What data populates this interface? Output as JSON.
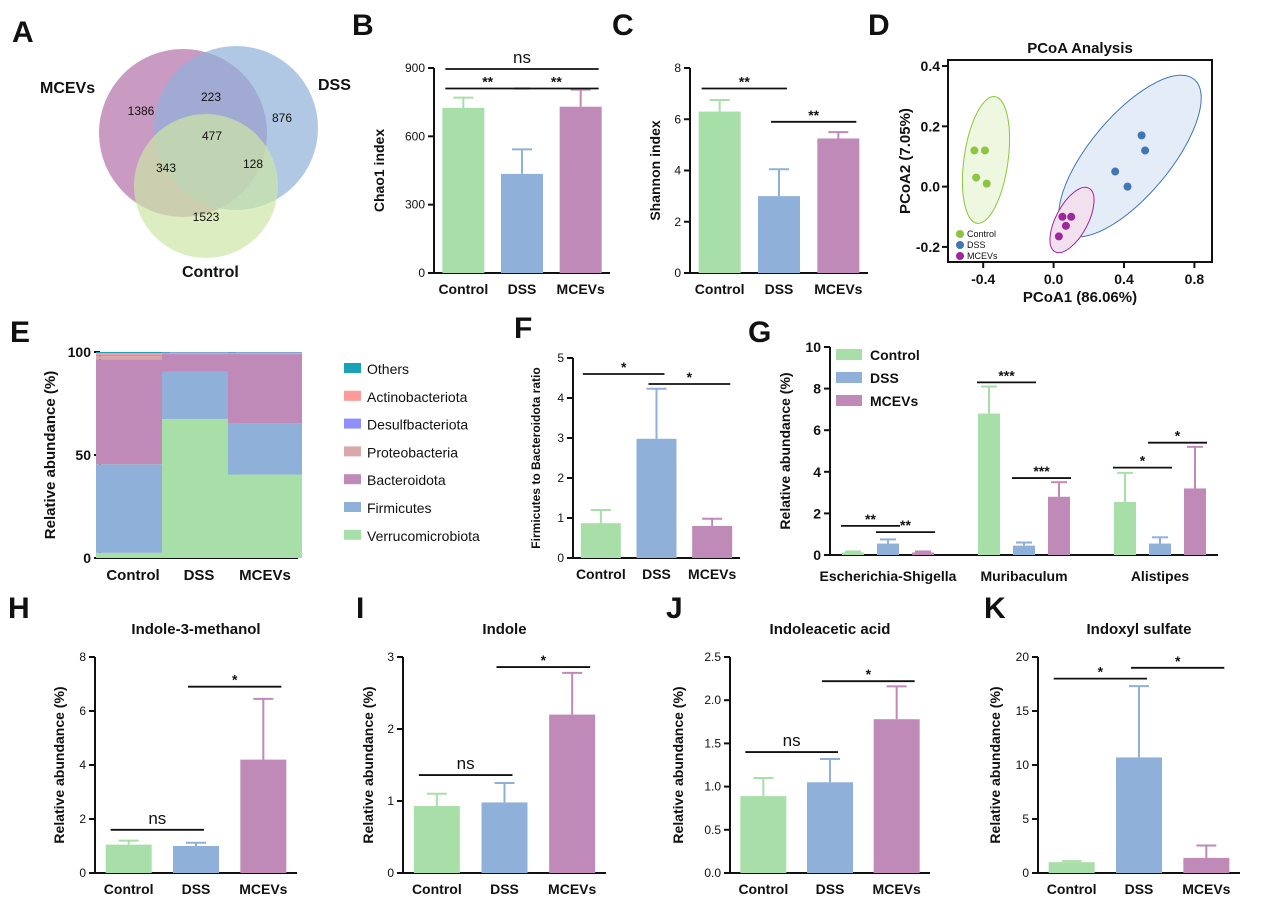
{
  "colors": {
    "control": "#a8dfa8",
    "dss": "#8fb0d8",
    "mcevs": "#c08ab8",
    "control_dot": "#8cc63f",
    "dss_dot": "#3f76b6",
    "mcevs_dot": "#a0279a",
    "others": "#1aa3b8",
    "actino": "#ff9a9a",
    "desulf": "#8f8fff",
    "proteo": "#d9a8a8"
  },
  "panels": {
    "A": "A",
    "B": "B",
    "C": "C",
    "D": "D",
    "E": "E",
    "F": "F",
    "G": "G",
    "H": "H",
    "I": "I",
    "J": "J",
    "K": "K"
  },
  "venn": {
    "labels": {
      "mcevs": "MCEVs",
      "dss": "DSS",
      "control": "Control"
    },
    "counts": {
      "mcevs_only": "1386",
      "mcevs_dss": "223",
      "dss_only": "876",
      "all": "477",
      "mcevs_control": "343",
      "dss_control": "128",
      "control_only": "1523"
    }
  },
  "chart_data": [
    {
      "id": "B",
      "type": "bar",
      "categories": [
        "Control",
        "DSS",
        "MCEVs"
      ],
      "values": [
        725,
        435,
        730
      ],
      "errors": [
        45,
        108,
        75
      ],
      "ylabel": "Chao1 index",
      "ylim": [
        0,
        900
      ],
      "yticks": [
        "0",
        "300",
        "600",
        "900"
      ],
      "significance": [
        {
          "from": 0,
          "to": 1,
          "label": "**",
          "level": 0
        },
        {
          "from": 1,
          "to": 2,
          "label": "**",
          "level": 0
        },
        {
          "from": 0,
          "to": 2,
          "label": "ns",
          "level": 1
        }
      ]
    },
    {
      "id": "C",
      "type": "bar",
      "categories": [
        "Control",
        "DSS",
        "MCEVs"
      ],
      "values": [
        6.3,
        3.0,
        5.25
      ],
      "errors": [
        0.45,
        1.05,
        0.25
      ],
      "ylabel": "Shannon index",
      "ylim": [
        0,
        8
      ],
      "yticks": [
        "0",
        "2",
        "4",
        "6",
        "8"
      ],
      "significance": [
        {
          "from": 0,
          "to": 1,
          "label": "**",
          "y": 7.2
        },
        {
          "from": 1,
          "to": 2,
          "label": "**",
          "y": 5.9
        }
      ]
    },
    {
      "id": "D",
      "type": "scatter",
      "title": "PCoA Analysis",
      "xlabel": "PCoA1 (86.06%)",
      "ylabel": "PCoA2 (7.05%)",
      "xlim": [
        -0.6,
        0.9
      ],
      "ylim": [
        -0.25,
        0.42
      ],
      "xticks": [
        "-0.4",
        "0.0",
        "0.4",
        "0.8"
      ],
      "yticks": [
        "-0.2",
        "0.0",
        "0.2",
        "0.4"
      ],
      "legend": [
        "Control",
        "DSS",
        "MCEVs"
      ],
      "series": [
        {
          "name": "Control",
          "points": [
            [
              -0.45,
              0.12
            ],
            [
              -0.39,
              0.12
            ],
            [
              -0.44,
              0.03
            ],
            [
              -0.38,
              0.01
            ]
          ]
        },
        {
          "name": "DSS",
          "points": [
            [
              0.5,
              0.17
            ],
            [
              0.52,
              0.12
            ],
            [
              0.35,
              0.05
            ],
            [
              0.42,
              0.0
            ]
          ]
        },
        {
          "name": "MCEVs",
          "points": [
            [
              0.05,
              -0.1
            ],
            [
              0.1,
              -0.1
            ],
            [
              0.07,
              -0.13
            ],
            [
              0.03,
              -0.165
            ]
          ]
        }
      ]
    },
    {
      "id": "E",
      "type": "bar",
      "stacked": true,
      "categories": [
        "Control",
        "DSS",
        "MCEVs"
      ],
      "ylabel": "Relative abundance (%)",
      "ylim": [
        0,
        100
      ],
      "yticks": [
        "0",
        "50",
        "100"
      ],
      "series": [
        {
          "name": "Verrucomicrobiota",
          "values": [
            2.5,
            67.5,
            40.5
          ]
        },
        {
          "name": "Firmicutes",
          "values": [
            43,
            23,
            25
          ]
        },
        {
          "name": "Bacteroidota",
          "values": [
            51,
            8.5,
            33.5
          ]
        },
        {
          "name": "Proteobacteria",
          "values": [
            1.5,
            0.5,
            0.5
          ]
        },
        {
          "name": "Desulfbacteriota",
          "values": [
            0.5,
            0.2,
            0.2
          ]
        },
        {
          "name": "Actinobacteriota",
          "values": [
            1.0,
            0.1,
            0.1
          ]
        },
        {
          "name": "Others",
          "values": [
            0.5,
            0.2,
            0.2
          ]
        }
      ],
      "legend": [
        "Others",
        "Actinobacteriota",
        "Desulfbacteriota",
        "Proteobacteria",
        "Bacteroidota",
        "Firmicutes",
        "Verrucomicrobiota"
      ]
    },
    {
      "id": "F",
      "type": "bar",
      "categories": [
        "Control",
        "DSS",
        "MCEVs"
      ],
      "values": [
        0.87,
        2.98,
        0.8
      ],
      "errors": [
        0.33,
        1.25,
        0.18
      ],
      "ylabel": "Firmicutes to Bacteroidota ratio",
      "ylim": [
        0,
        5
      ],
      "yticks": [
        "0",
        "1",
        "2",
        "3",
        "4",
        "5"
      ],
      "significance": [
        {
          "from": 0,
          "to": 1,
          "label": "*",
          "y": 4.6
        },
        {
          "from": 1,
          "to": 2,
          "label": "*",
          "y": 4.35
        }
      ]
    },
    {
      "id": "G",
      "type": "bar",
      "categories": [
        "Escherichia-Shigella",
        "Muribaculum",
        "Alistipes"
      ],
      "series": [
        {
          "name": "Control",
          "values": [
            0.12,
            6.8,
            2.55
          ],
          "errors": [
            0.05,
            1.3,
            1.4
          ]
        },
        {
          "name": "DSS",
          "values": [
            0.55,
            0.45,
            0.55
          ],
          "errors": [
            0.2,
            0.15,
            0.3
          ]
        },
        {
          "name": "MCEVs",
          "values": [
            0.12,
            2.8,
            3.2
          ],
          "errors": [
            0.05,
            0.7,
            2.0
          ]
        }
      ],
      "ylabel": "Relative abundance (%)",
      "ylim": [
        0,
        10
      ],
      "yticks": [
        "0",
        "2",
        "4",
        "6",
        "8",
        "10"
      ],
      "legend": [
        "Control",
        "DSS",
        "MCEVs"
      ],
      "significance": [
        {
          "group": 0,
          "from": 0,
          "to": 1,
          "label": "**",
          "y": 1.4
        },
        {
          "group": 0,
          "from": 1,
          "to": 2,
          "label": "**",
          "y": 1.1
        },
        {
          "group": 1,
          "from": 0,
          "to": 1,
          "label": "***",
          "y": 8.3
        },
        {
          "group": 1,
          "from": 1,
          "to": 2,
          "label": "***",
          "y": 3.7
        },
        {
          "group": 2,
          "from": 0,
          "to": 1,
          "label": "*",
          "y": 4.2
        },
        {
          "group": 2,
          "from": 1,
          "to": 2,
          "label": "*",
          "y": 5.4
        }
      ]
    },
    {
      "id": "H",
      "type": "bar",
      "title": "Indole-3-methanol",
      "categories": [
        "Control",
        "DSS",
        "MCEVs"
      ],
      "values": [
        1.05,
        1.0,
        4.2
      ],
      "errors": [
        0.15,
        0.12,
        2.25
      ],
      "ylabel": "Relative abundance (%)",
      "ylim": [
        0,
        8
      ],
      "yticks": [
        "0",
        "2",
        "4",
        "6",
        "8"
      ],
      "significance": [
        {
          "from": 0,
          "to": 1,
          "label": "ns",
          "y": 1.6
        },
        {
          "from": 1,
          "to": 2,
          "label": "*",
          "y": 6.9
        }
      ]
    },
    {
      "id": "I",
      "type": "bar",
      "title": "Indole",
      "categories": [
        "Control",
        "DSS",
        "MCEVs"
      ],
      "values": [
        0.93,
        0.98,
        2.2
      ],
      "errors": [
        0.17,
        0.27,
        0.58
      ],
      "ylabel": "Relative abundance (%)",
      "ylim": [
        0,
        3
      ],
      "yticks": [
        "0",
        "1",
        "2",
        "3"
      ],
      "significance": [
        {
          "from": 0,
          "to": 1,
          "label": "ns",
          "y": 1.36
        },
        {
          "from": 1,
          "to": 2,
          "label": "*",
          "y": 2.86
        }
      ]
    },
    {
      "id": "J",
      "type": "bar",
      "title": "Indoleacetic acid",
      "categories": [
        "Control",
        "DSS",
        "MCEVs"
      ],
      "values": [
        0.89,
        1.05,
        1.78
      ],
      "errors": [
        0.21,
        0.27,
        0.38
      ],
      "ylabel": "Relative abundance (%)",
      "ylim": [
        0,
        2.5
      ],
      "yticks": [
        "0.0",
        "0.5",
        "1.0",
        "1.5",
        "2.0",
        "2.5"
      ],
      "significance": [
        {
          "from": 0,
          "to": 1,
          "label": "ns",
          "y": 1.4
        },
        {
          "from": 1,
          "to": 2,
          "label": "*",
          "y": 2.22
        }
      ]
    },
    {
      "id": "K",
      "type": "bar",
      "title": "Indoxyl sulfate",
      "categories": [
        "Control",
        "DSS",
        "MCEVs"
      ],
      "values": [
        1.0,
        10.7,
        1.4
      ],
      "errors": [
        0.1,
        6.6,
        1.15
      ],
      "ylabel": "Relative abundance (%)",
      "ylim": [
        0,
        20
      ],
      "yticks": [
        "0",
        "5",
        "10",
        "15",
        "20"
      ],
      "significance": [
        {
          "from": 0,
          "to": 1,
          "label": "*",
          "y": 18.0
        },
        {
          "from": 1,
          "to": 2,
          "label": "*",
          "y": 19.0
        }
      ]
    }
  ]
}
